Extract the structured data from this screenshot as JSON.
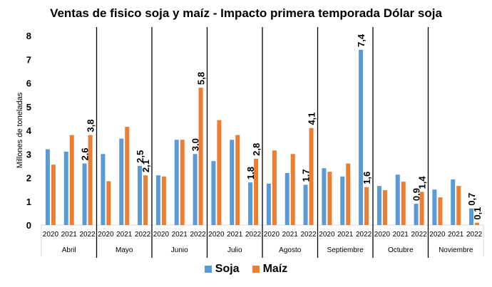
{
  "chart_data": {
    "type": "bar",
    "title": "Ventas de fisico soja y maíz - Impacto primera temporada Dólar soja",
    "ylabel": "Millones de toneladas",
    "xlabel": "",
    "ylim": [
      0,
      8
    ],
    "yticks": [
      "0",
      "1",
      "2",
      "3",
      "4",
      "5",
      "6",
      "7",
      "8"
    ],
    "grid": false,
    "legend_position": "bottom",
    "groups": [
      "Abril",
      "Mayo",
      "Junio",
      "Julio",
      "Agosto",
      "Septiembre",
      "Octubre",
      "Noviembre"
    ],
    "years": [
      "2020",
      "2021",
      "2022"
    ],
    "series": [
      {
        "name": "Soja",
        "color": "#5B9BD5",
        "values": [
          [
            3.2,
            3.1,
            2.6
          ],
          [
            3.0,
            3.65,
            2.5
          ],
          [
            2.1,
            3.6,
            3.0
          ],
          [
            2.7,
            3.6,
            1.8
          ],
          [
            1.75,
            2.2,
            1.7
          ],
          [
            2.4,
            2.05,
            7.4
          ],
          [
            1.65,
            2.13,
            0.9
          ],
          [
            1.5,
            1.93,
            0.7
          ]
        ]
      },
      {
        "name": "Maíz",
        "color": "#ED7D31",
        "values": [
          [
            2.55,
            3.8,
            3.8
          ],
          [
            1.85,
            4.15,
            2.1
          ],
          [
            2.05,
            3.6,
            5.8
          ],
          [
            4.43,
            3.8,
            2.8
          ],
          [
            3.15,
            3.0,
            4.1
          ],
          [
            2.25,
            2.6,
            1.6
          ],
          [
            1.47,
            1.83,
            1.4
          ],
          [
            1.17,
            1.65,
            0.1
          ]
        ]
      }
    ],
    "data_labels_2022": {
      "Soja": [
        "2,6",
        "2,5",
        "3,0",
        "1,8",
        "1,7",
        "7,4",
        "0,9",
        "0,7"
      ],
      "Maíz": [
        "3,8",
        "2,1",
        "5,8",
        "2,8",
        "4,1",
        "1,6",
        "1,4",
        "0,1"
      ]
    }
  }
}
